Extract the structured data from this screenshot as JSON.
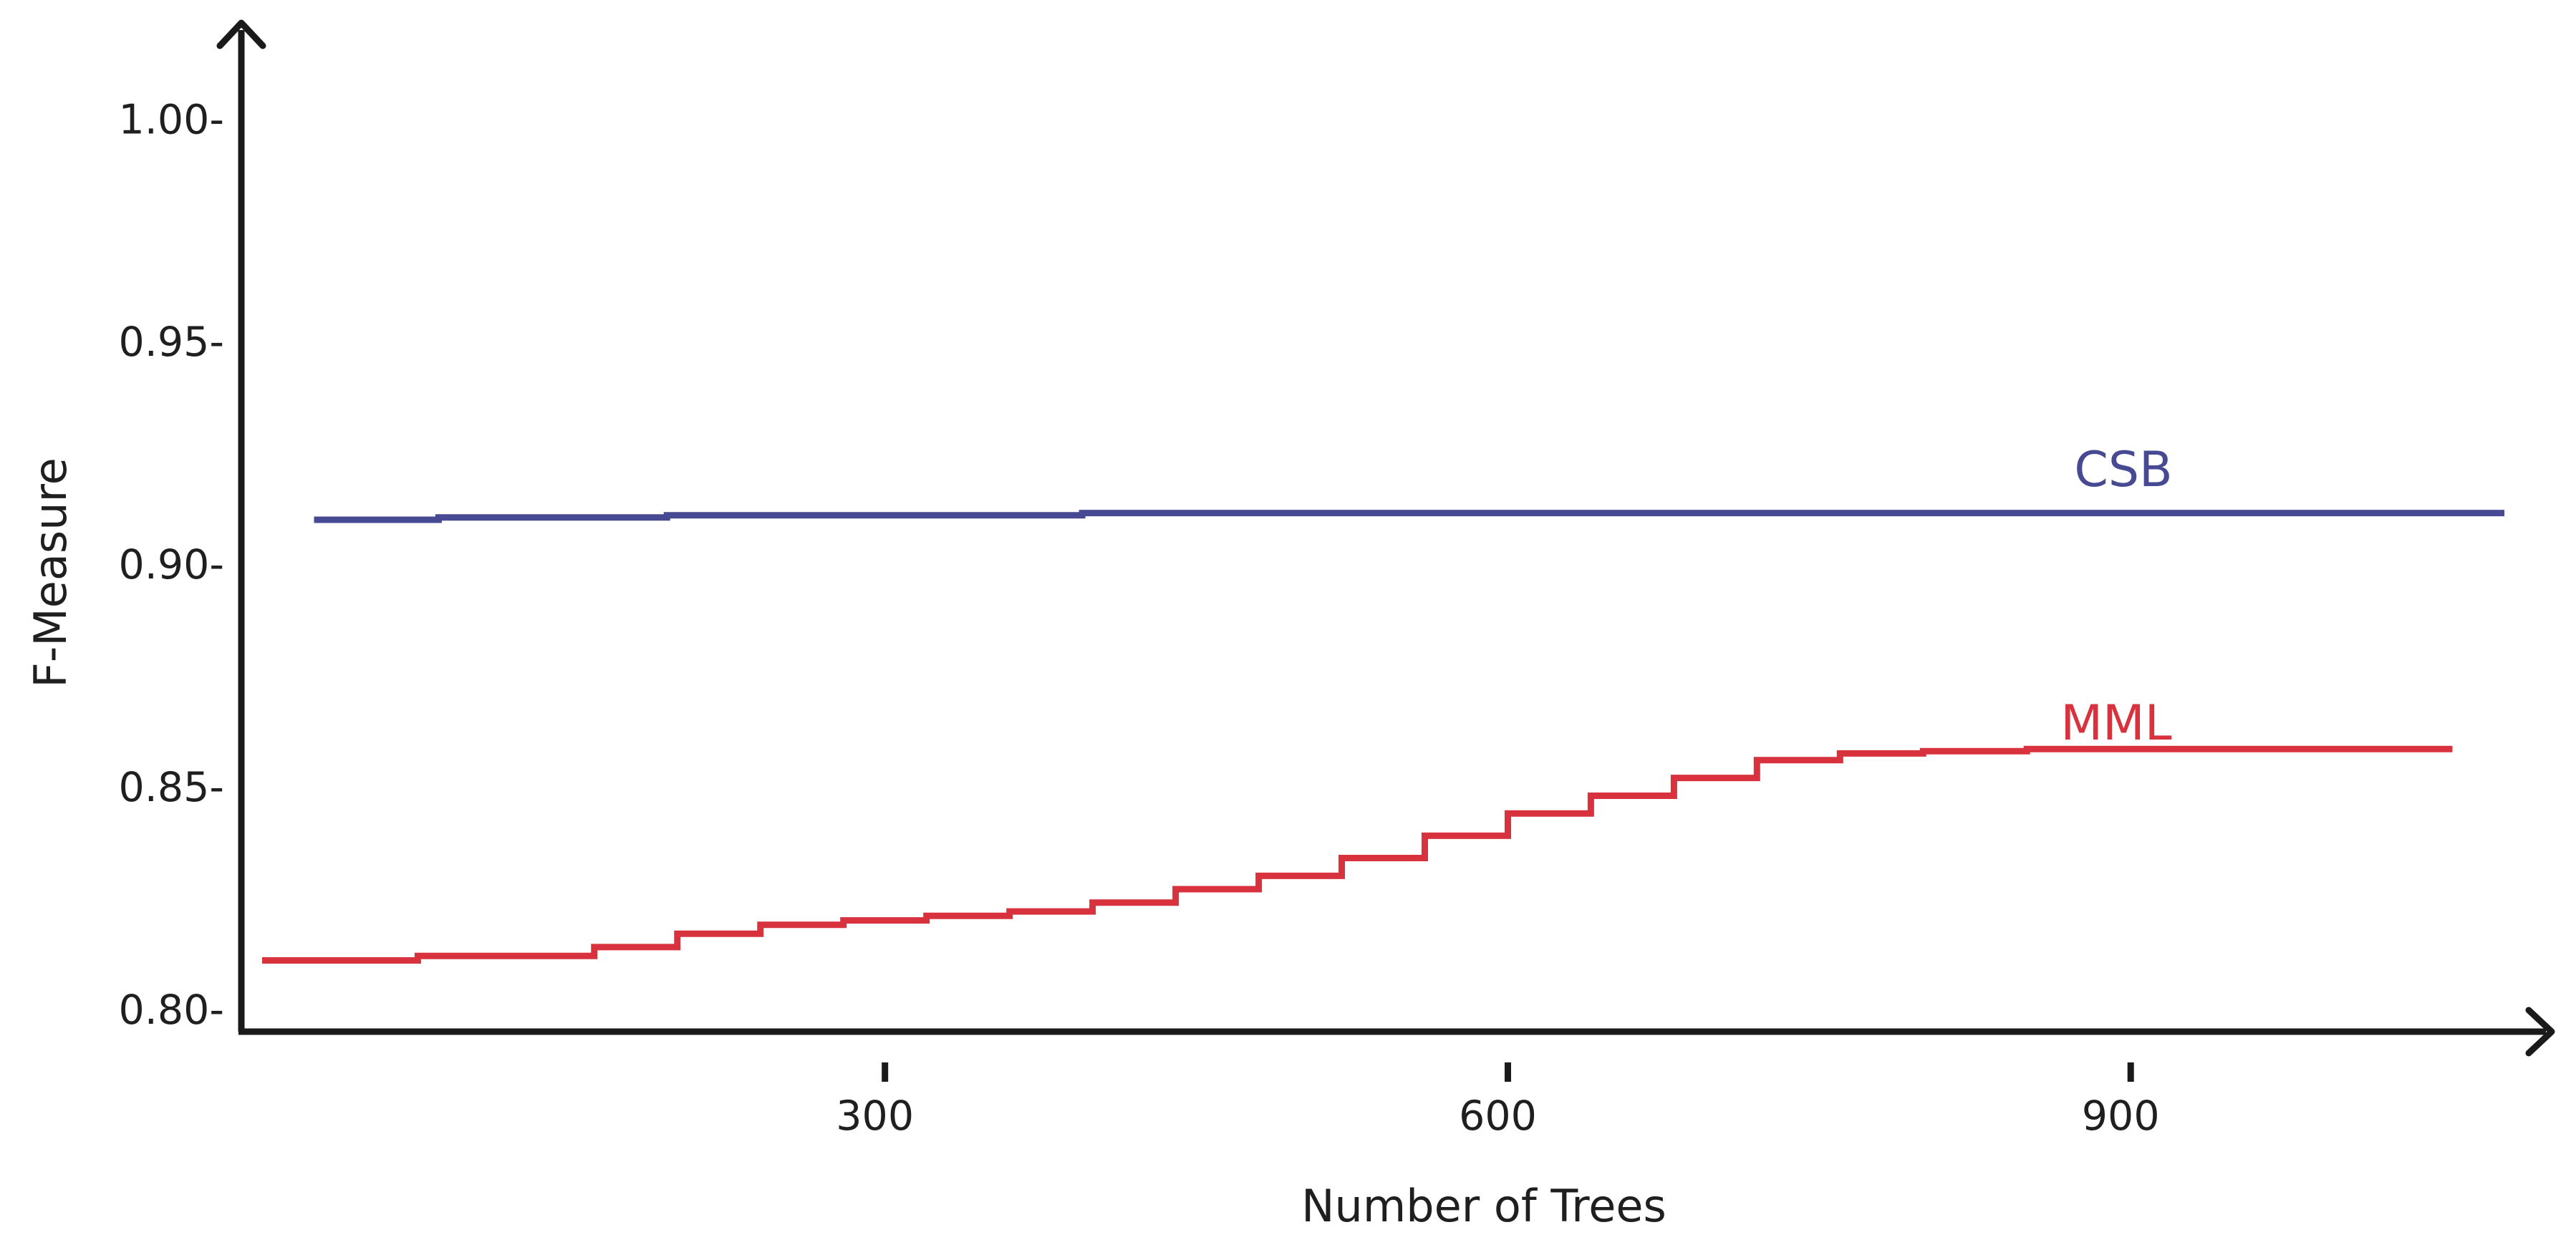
{
  "chart_data": {
    "type": "line",
    "xlabel": "Number of Trees",
    "ylabel": "F-Measure",
    "xlim": [
      -10,
      1100
    ],
    "ylim": [
      0.795,
      1.02
    ],
    "x_ticks": [
      300,
      600,
      900
    ],
    "y_ticks": [
      0.8,
      0.85,
      0.9,
      0.95,
      1.0
    ],
    "x_tick_labels": [
      "300",
      "600",
      "900"
    ],
    "y_tick_labels": [
      "0.80-",
      "0.85-",
      "0.90-",
      "0.95-",
      "1.00-"
    ],
    "grid": false,
    "series": [
      {
        "name": "CSB",
        "color": "#474a93",
        "x": [
          25,
          75,
          85,
          185,
          195,
          385,
          395,
          1080
        ],
        "y": [
          0.91,
          0.91,
          0.9105,
          0.9105,
          0.911,
          0.911,
          0.9115,
          0.9115
        ]
      },
      {
        "name": "MML",
        "color": "#d9323f",
        "x": [
          0,
          25,
          75,
          100,
          120,
          160,
          200,
          240,
          280,
          320,
          360,
          400,
          440,
          480,
          520,
          560,
          600,
          640,
          680,
          720,
          760,
          800,
          850,
          900,
          950,
          1010,
          1055
        ],
        "y": [
          0.811,
          0.811,
          0.812,
          0.812,
          0.812,
          0.814,
          0.817,
          0.819,
          0.82,
          0.821,
          0.822,
          0.824,
          0.827,
          0.83,
          0.834,
          0.839,
          0.844,
          0.848,
          0.852,
          0.856,
          0.8575,
          0.858,
          0.8585,
          0.8585,
          0.8585,
          0.8585,
          0.8585
        ]
      }
    ],
    "annotations": [
      "CSB",
      "MML"
    ]
  }
}
